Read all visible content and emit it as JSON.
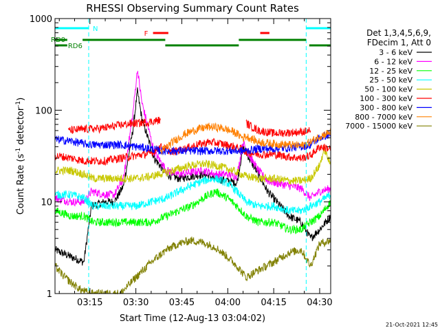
{
  "chart_data": {
    "type": "line",
    "title": "RHESSI Observing Summary Count Rates",
    "xlabel": "Start Time (12-Aug-13 03:04:02)",
    "ylabel_parts": [
      "Count Rate (s",
      "-1",
      " detector",
      "-1",
      ")"
    ],
    "yscale": "log",
    "ylim": [
      1,
      1000
    ],
    "xlim_minutes": [
      3.6,
      93.6
    ],
    "x_ticks": [
      {
        "minute": 15,
        "label": "03:15"
      },
      {
        "minute": 30,
        "label": "03:30"
      },
      {
        "minute": 45,
        "label": "03:45"
      },
      {
        "minute": 60,
        "label": "04:00"
      },
      {
        "minute": 75,
        "label": "04:15"
      },
      {
        "minute": 90,
        "label": "04:30"
      }
    ],
    "y_ticks": [
      {
        "value": 1,
        "label": "1"
      },
      {
        "value": 10,
        "label": "10"
      },
      {
        "value": 100,
        "label": "100"
      },
      {
        "value": 1000,
        "label": "1000"
      }
    ],
    "legend_header": [
      "Det 1,3,4,5,6,9,",
      "FDecim 1, Att 0"
    ],
    "legend_placement": "right",
    "series": [
      {
        "name": "3 - 6 keV",
        "color": "#000000",
        "points": [
          [
            3.6,
            3
          ],
          [
            9,
            2.5
          ],
          [
            13,
            2.2
          ],
          [
            15.5,
            9
          ],
          [
            20,
            10
          ],
          [
            23,
            10
          ],
          [
            26,
            15
          ],
          [
            29,
            60
          ],
          [
            30.5,
            160
          ],
          [
            32,
            80
          ],
          [
            36,
            30
          ],
          [
            40,
            20
          ],
          [
            44,
            18
          ],
          [
            48,
            19
          ],
          [
            52,
            20
          ],
          [
            56,
            18
          ],
          [
            60,
            17
          ],
          [
            63,
            16
          ],
          [
            65,
            40
          ],
          [
            67,
            30
          ],
          [
            70,
            20
          ],
          [
            73,
            13
          ],
          [
            76,
            10
          ],
          [
            80,
            7
          ],
          [
            84,
            6
          ],
          [
            87,
            4
          ],
          [
            90,
            5
          ],
          [
            93.6,
            7
          ]
        ]
      },
      {
        "name": "6 - 12 keV",
        "color": "#ff00ff",
        "points": [
          [
            3.6,
            11
          ],
          [
            9,
            10
          ],
          [
            13,
            10
          ],
          [
            15.5,
            13
          ],
          [
            20,
            12
          ],
          [
            23,
            12
          ],
          [
            26,
            18
          ],
          [
            29,
            90
          ],
          [
            30.5,
            280
          ],
          [
            32,
            120
          ],
          [
            36,
            35
          ],
          [
            40,
            22
          ],
          [
            44,
            20
          ],
          [
            48,
            21
          ],
          [
            52,
            22
          ],
          [
            56,
            20
          ],
          [
            60,
            20
          ],
          [
            63,
            19
          ],
          [
            65,
            45
          ],
          [
            67,
            32
          ],
          [
            70,
            22
          ],
          [
            73,
            17
          ],
          [
            76,
            16
          ],
          [
            80,
            15
          ],
          [
            84,
            14
          ],
          [
            87,
            11
          ],
          [
            90,
            13
          ],
          [
            93.6,
            14
          ]
        ]
      },
      {
        "name": "12 - 25 keV",
        "color": "#00ff00",
        "points": [
          [
            3.6,
            8
          ],
          [
            9,
            7
          ],
          [
            13,
            7
          ],
          [
            16,
            6
          ],
          [
            20,
            6
          ],
          [
            25,
            6
          ],
          [
            30,
            6
          ],
          [
            35,
            6
          ],
          [
            40,
            7
          ],
          [
            44,
            8
          ],
          [
            48,
            9
          ],
          [
            52,
            11
          ],
          [
            56,
            13
          ],
          [
            60,
            11
          ],
          [
            63,
            9
          ],
          [
            66,
            7
          ],
          [
            70,
            6
          ],
          [
            75,
            6
          ],
          [
            80,
            5
          ],
          [
            84,
            5
          ],
          [
            87,
            6
          ],
          [
            90,
            7
          ],
          [
            93.6,
            10
          ]
        ]
      },
      {
        "name": "25 - 50 keV",
        "color": "#00ffff",
        "points": [
          [
            3.6,
            12
          ],
          [
            9,
            12
          ],
          [
            13,
            11
          ],
          [
            16,
            9
          ],
          [
            20,
            9
          ],
          [
            25,
            9
          ],
          [
            30,
            9
          ],
          [
            35,
            10
          ],
          [
            40,
            11
          ],
          [
            44,
            13
          ],
          [
            48,
            15
          ],
          [
            52,
            17
          ],
          [
            56,
            18
          ],
          [
            60,
            16
          ],
          [
            63,
            13
          ],
          [
            66,
            10
          ],
          [
            70,
            9
          ],
          [
            75,
            9
          ],
          [
            80,
            8
          ],
          [
            84,
            8
          ],
          [
            87,
            9
          ],
          [
            90,
            10
          ],
          [
            93.6,
            12
          ]
        ]
      },
      {
        "name": "50 - 100 keV",
        "color": "#c8c800",
        "points": [
          [
            3.6,
            22
          ],
          [
            9,
            22
          ],
          [
            13,
            20
          ],
          [
            16,
            18
          ],
          [
            20,
            18
          ],
          [
            25,
            18
          ],
          [
            30,
            18
          ],
          [
            35,
            19
          ],
          [
            40,
            21
          ],
          [
            44,
            23
          ],
          [
            48,
            25
          ],
          [
            52,
            26
          ],
          [
            56,
            25
          ],
          [
            60,
            23
          ],
          [
            63,
            21
          ],
          [
            66,
            19
          ],
          [
            70,
            18
          ],
          [
            75,
            18
          ],
          [
            80,
            17
          ],
          [
            84,
            17
          ],
          [
            87,
            18
          ],
          [
            90,
            25
          ],
          [
            91.5,
            38
          ],
          [
            93.6,
            25
          ]
        ]
      },
      {
        "name": "100 - 300 keV",
        "color": "#ff0000",
        "points": [
          [
            3.6,
            32
          ],
          [
            9,
            30
          ],
          [
            13,
            28
          ],
          [
            16,
            28
          ],
          [
            20,
            28
          ],
          [
            25,
            30
          ],
          [
            30,
            32
          ],
          [
            35,
            34
          ],
          [
            38,
            40
          ],
          [
            42,
            35
          ],
          [
            46,
            38
          ],
          [
            50,
            42
          ],
          [
            54,
            45
          ],
          [
            58,
            43
          ],
          [
            62,
            40
          ],
          [
            65,
            37
          ],
          [
            66,
            35
          ],
          [
            70,
            33
          ],
          [
            75,
            33
          ],
          [
            80,
            31
          ],
          [
            84,
            30
          ],
          [
            87,
            32
          ],
          [
            90,
            40
          ],
          [
            93.6,
            38
          ]
        ]
      },
      {
        "name": "300 - 800 keV",
        "color": "#0000ff",
        "points": [
          [
            3.6,
            48
          ],
          [
            9,
            46
          ],
          [
            13,
            43
          ],
          [
            16,
            42
          ],
          [
            20,
            42
          ],
          [
            25,
            42
          ],
          [
            30,
            40
          ],
          [
            35,
            38
          ],
          [
            38,
            36
          ],
          [
            66,
            36
          ],
          [
            70,
            38
          ],
          [
            75,
            38
          ],
          [
            80,
            39
          ],
          [
            84,
            40
          ],
          [
            87,
            42
          ],
          [
            90,
            50
          ],
          [
            93.6,
            55
          ]
        ]
      },
      {
        "name": "800 - 7000 keV",
        "color": "#ff8000",
        "points": [
          [
            38,
            35
          ],
          [
            42,
            45
          ],
          [
            46,
            55
          ],
          [
            50,
            62
          ],
          [
            54,
            66
          ],
          [
            58,
            64
          ],
          [
            62,
            58
          ],
          [
            65,
            50
          ],
          [
            66,
            52
          ],
          [
            70,
            45
          ],
          [
            75,
            43
          ],
          [
            80,
            42
          ],
          [
            84,
            41
          ],
          [
            87,
            45
          ],
          [
            90,
            52
          ],
          [
            93.6,
            58
          ]
        ]
      },
      {
        "name": "100 - 300 keV (upper)",
        "color": "#ff0000",
        "points": [
          [
            8,
            60
          ],
          [
            13,
            62
          ],
          [
            18,
            63
          ],
          [
            22,
            66
          ],
          [
            26,
            70
          ],
          [
            30,
            72
          ],
          [
            34,
            74
          ],
          [
            36,
            76
          ],
          [
            38,
            78
          ]
        ]
      },
      {
        "name": "100 - 300 keV (night)",
        "color": "#ff0000",
        "points": [
          [
            66,
            72
          ],
          [
            70,
            60
          ],
          [
            75,
            56
          ],
          [
            80,
            57
          ],
          [
            84,
            58
          ],
          [
            87,
            60
          ]
        ]
      },
      {
        "name": "7000 - 15000 keV",
        "color": "#808000",
        "points": [
          [
            3.6,
            2
          ],
          [
            6,
            1.6
          ],
          [
            9,
            1.3
          ],
          [
            12,
            1.1
          ],
          [
            15,
            1
          ],
          [
            25,
            1
          ],
          [
            30,
            1.5
          ],
          [
            35,
            2.2
          ],
          [
            40,
            3
          ],
          [
            44,
            3.5
          ],
          [
            48,
            3.8
          ],
          [
            52,
            3.6
          ],
          [
            56,
            3.2
          ],
          [
            60,
            2.5
          ],
          [
            63,
            2
          ],
          [
            66,
            1.5
          ],
          [
            70,
            1.8
          ],
          [
            75,
            2.2
          ],
          [
            80,
            2.8
          ],
          [
            84,
            3
          ],
          [
            87,
            2
          ],
          [
            90,
            3.5
          ],
          [
            93.6,
            3.8
          ]
        ]
      }
    ],
    "legend_entries": [
      {
        "label": "3 - 6 keV",
        "color": "#000000"
      },
      {
        "label": "6 - 12 keV",
        "color": "#ff00ff"
      },
      {
        "label": "12 - 25 keV",
        "color": "#00ff00"
      },
      {
        "label": "25 - 50 keV",
        "color": "#00ffff"
      },
      {
        "label": "50 - 100 keV",
        "color": "#c8c800"
      },
      {
        "label": "100 - 300 keV",
        "color": "#ff0000"
      },
      {
        "label": "300 - 800 keV",
        "color": "#0000ff"
      },
      {
        "label": "800 - 7000 keV",
        "color": "#ff8000"
      },
      {
        "label": "7000 - 15000 keV",
        "color": "#808000"
      }
    ],
    "annotations": {
      "night_label": "N",
      "flare_label": "F",
      "rd0_label": "RD0",
      "rd6_label": "RD6",
      "night_intervals": [
        [
          3.6,
          14.6
        ],
        [
          85.6,
          93.6
        ]
      ],
      "flare_intervals": [
        [
          35.6,
          40.6
        ],
        [
          70.6,
          73.6
        ]
      ],
      "rd0_intervals": [
        [
          3.6,
          7.6
        ],
        [
          12.6,
          39.6
        ],
        [
          63.6,
          85.6
        ]
      ],
      "rd6_intervals": [
        [
          3.6,
          7.6
        ],
        [
          39.6,
          63.6
        ],
        [
          86.6,
          93.6
        ]
      ]
    },
    "footer_timestamp": "21-Oct-2021 12:45"
  }
}
